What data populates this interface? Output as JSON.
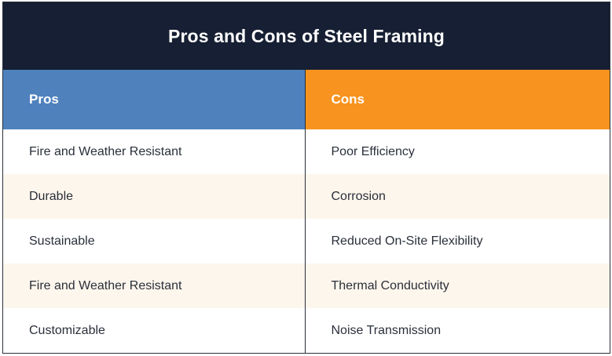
{
  "title": "Pros and Cons of Steel Framing",
  "headers": {
    "pros": "Pros",
    "cons": "Cons"
  },
  "rows": [
    {
      "pro": "Fire and Weather Resistant",
      "con": "Poor Efficiency"
    },
    {
      "pro": "Durable",
      "con": "Corrosion"
    },
    {
      "pro": "Sustainable",
      "con": "Reduced On-Site Flexibility"
    },
    {
      "pro": "Fire and Weather Resistant",
      "con": "Thermal Conductivity"
    },
    {
      "pro": "Customizable",
      "con": "Noise Transmission"
    }
  ],
  "colors": {
    "title_background": "#161f33",
    "pros_header": "#4f81bd",
    "cons_header": "#f7931e",
    "stripe": "#fdf6ec"
  }
}
